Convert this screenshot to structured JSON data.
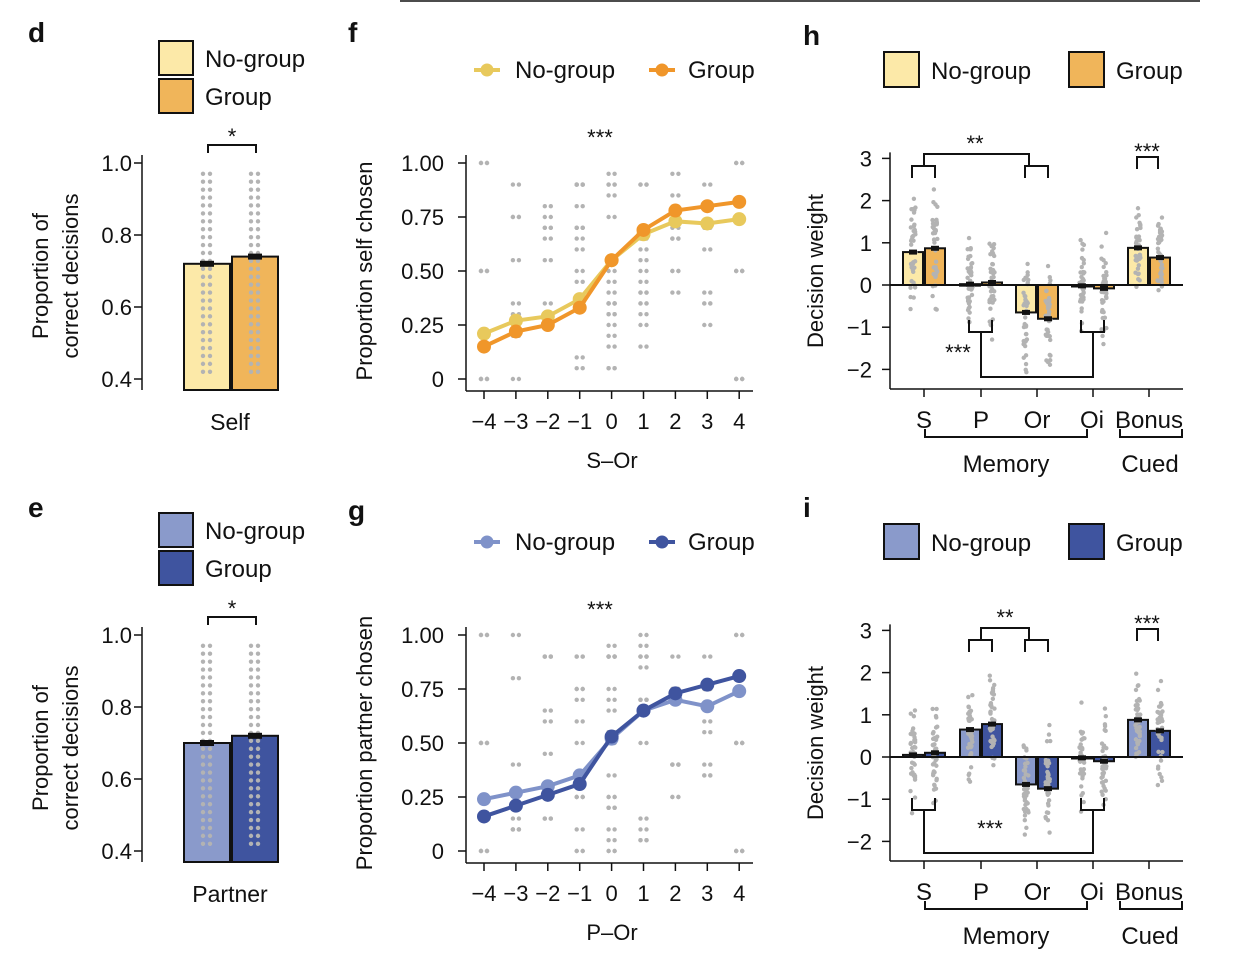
{
  "colors": {
    "self_nogroup_bar": "#fce9a8",
    "self_group_bar": "#f0b55a",
    "self_nogroup_line": "#e8c95c",
    "self_group_line": "#f0962a",
    "partner_nogroup_bar": "#8a9acb",
    "partner_group_bar": "#3f549f",
    "partner_nogroup_line": "#7f92c9",
    "partner_group_line": "#3f549f",
    "dots": "#b3b3b3"
  },
  "chart_data": [
    {
      "panel": "d",
      "type": "bar",
      "categories": [
        "Self"
      ],
      "series": [
        {
          "name": "No-group",
          "values": [
            0.72
          ]
        },
        {
          "name": "Group",
          "values": [
            0.74
          ]
        }
      ],
      "ylabel": [
        "Proportion of",
        "correct decisions"
      ],
      "ylim": [
        0.4,
        1.0
      ],
      "yticks": [
        "0.4",
        "0.6",
        "0.8",
        "1.0"
      ],
      "significance": "*",
      "legend": "top-left"
    },
    {
      "panel": "e",
      "type": "bar",
      "categories": [
        "Partner"
      ],
      "series": [
        {
          "name": "No-group",
          "values": [
            0.7
          ]
        },
        {
          "name": "Group",
          "values": [
            0.72
          ]
        }
      ],
      "ylabel": [
        "Proportion of",
        "correct decisions"
      ],
      "ylim": [
        0.4,
        1.0
      ],
      "yticks": [
        "0.4",
        "0.6",
        "0.8",
        "1.0"
      ],
      "significance": "*",
      "legend": "top-left"
    },
    {
      "panel": "f",
      "type": "line",
      "x": [
        -4,
        -3,
        -2,
        -1,
        0,
        1,
        2,
        3,
        4
      ],
      "xticks": [
        "−4",
        "−3",
        "−2",
        "−1",
        "0",
        "1",
        "2",
        "3",
        "4"
      ],
      "series": [
        {
          "name": "No-group",
          "values": [
            0.21,
            0.27,
            0.29,
            0.37,
            0.55,
            0.67,
            0.73,
            0.72,
            0.74
          ]
        },
        {
          "name": "Group",
          "values": [
            0.15,
            0.22,
            0.25,
            0.33,
            0.55,
            0.69,
            0.78,
            0.8,
            0.82
          ]
        }
      ],
      "xlabel": "S–Or",
      "ylabel": "Proportion self chosen",
      "ylim": [
        0,
        1
      ],
      "yticks": [
        "0",
        "0.25",
        "0.50",
        "0.75",
        "1.00"
      ],
      "significance": "***",
      "legend": "top"
    },
    {
      "panel": "g",
      "type": "line",
      "x": [
        -4,
        -3,
        -2,
        -1,
        0,
        1,
        2,
        3,
        4
      ],
      "xticks": [
        "−4",
        "−3",
        "−2",
        "−1",
        "0",
        "1",
        "2",
        "3",
        "4"
      ],
      "series": [
        {
          "name": "No-group",
          "values": [
            0.24,
            0.27,
            0.3,
            0.35,
            0.52,
            0.65,
            0.7,
            0.67,
            0.74
          ]
        },
        {
          "name": "Group",
          "values": [
            0.16,
            0.21,
            0.26,
            0.31,
            0.53,
            0.65,
            0.73,
            0.77,
            0.81
          ]
        }
      ],
      "xlabel": "P–Or",
      "ylabel": "Proportion partner chosen",
      "ylim": [
        0,
        1
      ],
      "yticks": [
        "0",
        "0.25",
        "0.50",
        "0.75",
        "1.00"
      ],
      "significance": "***",
      "legend": "top"
    },
    {
      "panel": "h",
      "type": "bar",
      "categories": [
        "S",
        "P",
        "Or",
        "Oi",
        "Bonus"
      ],
      "series": [
        {
          "name": "No-group",
          "values": [
            0.78,
            0.02,
            -0.65,
            -0.02,
            0.88
          ]
        },
        {
          "name": "Group",
          "values": [
            0.87,
            0.06,
            -0.8,
            -0.08,
            0.65
          ]
        }
      ],
      "groups": [
        "Memory",
        "Cued"
      ],
      "ylabel": "Decision weight",
      "ylim": [
        -2,
        3
      ],
      "yticks": [
        "−2",
        "−1",
        "0",
        "1",
        "2",
        "3"
      ],
      "significance": [
        {
          "label": "**",
          "between": [
            "S",
            "Or"
          ]
        },
        {
          "label": "***",
          "between": [
            "Bonus No-group",
            "Bonus Group"
          ]
        },
        {
          "label": "***",
          "between": [
            "P",
            "Oi"
          ]
        }
      ],
      "legend": "top"
    },
    {
      "panel": "i",
      "type": "bar",
      "categories": [
        "S",
        "P",
        "Or",
        "Oi",
        "Bonus"
      ],
      "series": [
        {
          "name": "No-group",
          "values": [
            0.05,
            0.65,
            -0.65,
            -0.02,
            0.88
          ]
        },
        {
          "name": "Group",
          "values": [
            0.1,
            0.78,
            -0.75,
            -0.1,
            0.62
          ]
        }
      ],
      "groups": [
        "Memory",
        "Cued"
      ],
      "ylabel": "Decision weight",
      "ylim": [
        -2,
        3
      ],
      "yticks": [
        "−2",
        "−1",
        "0",
        "1",
        "2",
        "3"
      ],
      "significance": [
        {
          "label": "**",
          "between": [
            "P",
            "Or"
          ]
        },
        {
          "label": "***",
          "between": [
            "Bonus No-group",
            "Bonus Group"
          ]
        },
        {
          "label": "***",
          "between": [
            "S",
            "Oi"
          ]
        }
      ],
      "legend": "top"
    }
  ]
}
